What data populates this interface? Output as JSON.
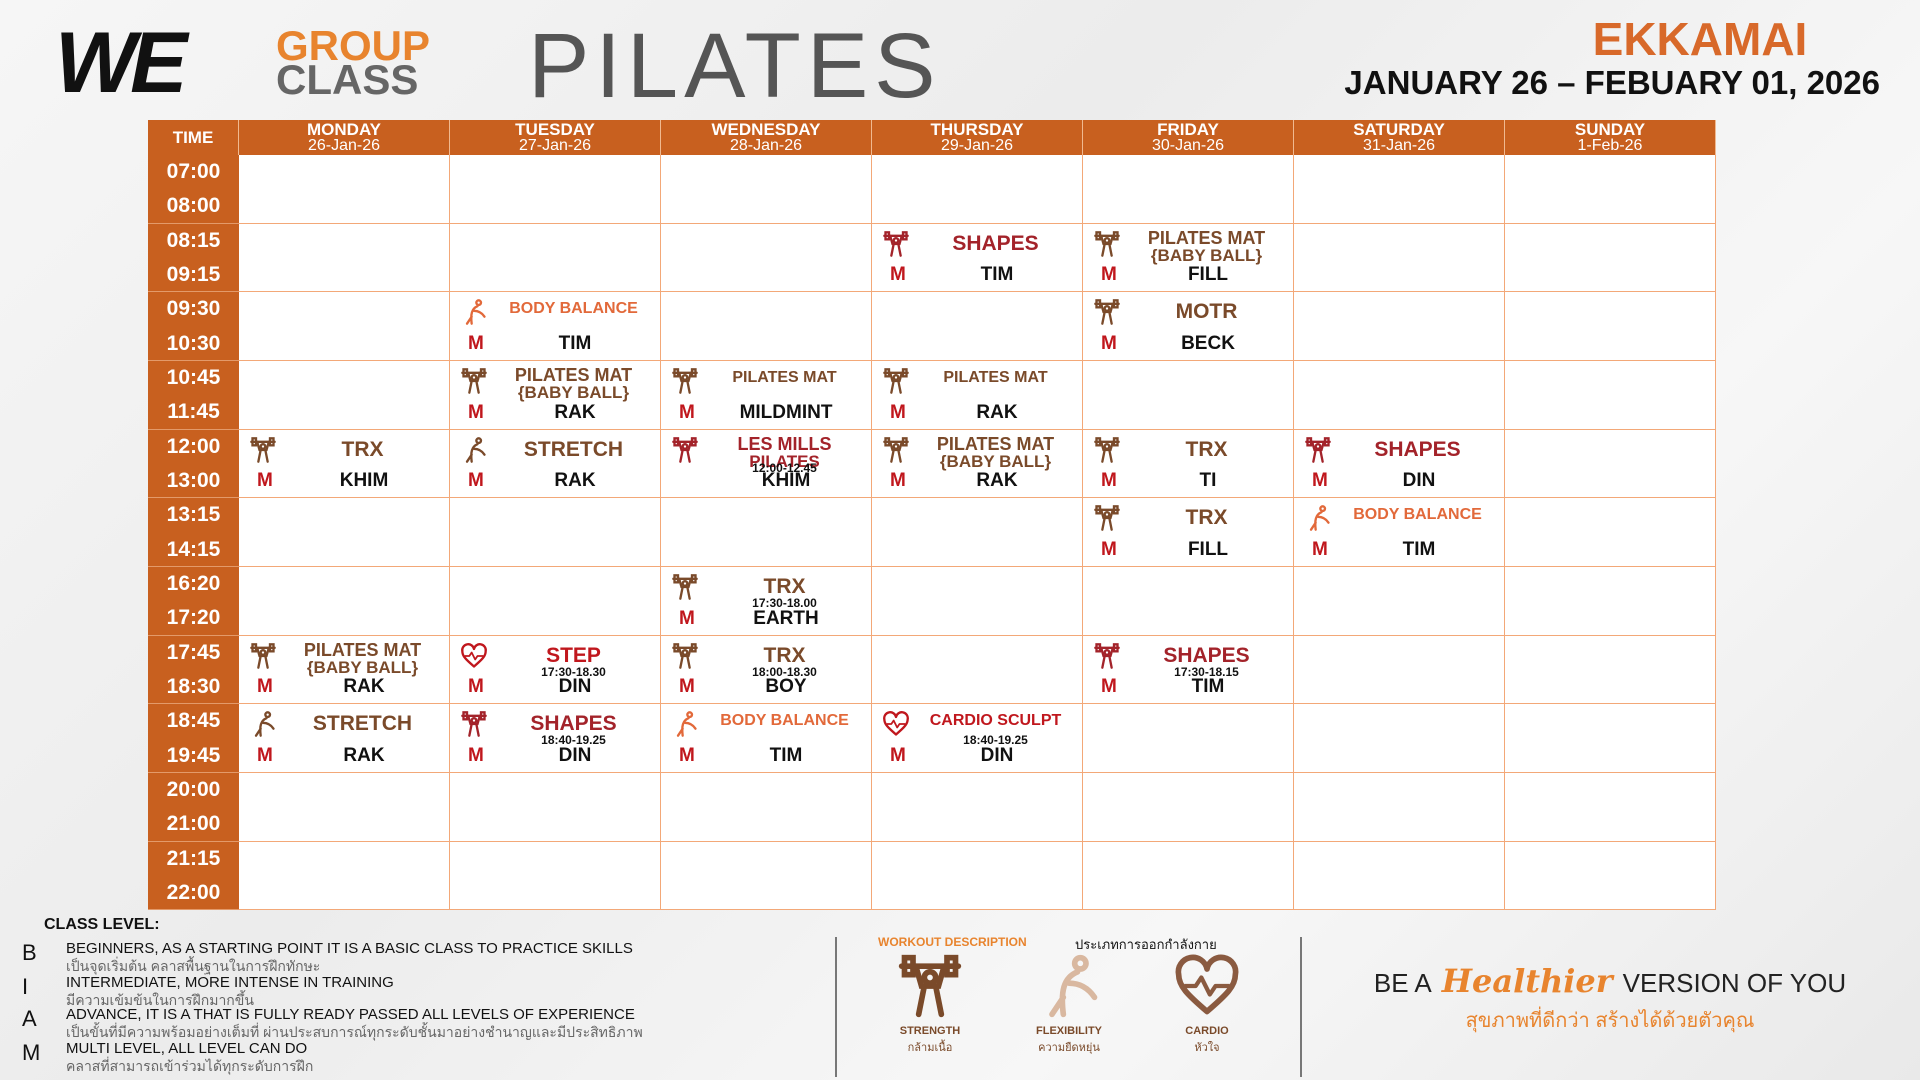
{
  "header": {
    "logo": "WE",
    "brand_line1": "GROUP",
    "brand_line2": "CLASS",
    "brand_main": "PILATES",
    "location": "EKKAMAI",
    "date_range": "JANUARY 26 – FEBUARY 01, 2026"
  },
  "schedule": {
    "time_header": "TIME",
    "days": [
      {
        "name": "MONDAY",
        "date": "26-Jan-26"
      },
      {
        "name": "TUESDAY",
        "date": "27-Jan-26"
      },
      {
        "name": "WEDNESDAY",
        "date": "28-Jan-26"
      },
      {
        "name": "THURSDAY",
        "date": "29-Jan-26"
      },
      {
        "name": "FRIDAY",
        "date": "30-Jan-26"
      },
      {
        "name": "SATURDAY",
        "date": "31-Jan-26"
      },
      {
        "name": "SUNDAY",
        "date": "1-Feb-26"
      }
    ],
    "slots": [
      [
        "07:00",
        "08:00"
      ],
      [
        "08:15",
        "09:15"
      ],
      [
        "09:30",
        "10:30"
      ],
      [
        "10:45",
        "11:45"
      ],
      [
        "12:00",
        "13:00"
      ],
      [
        "13:15",
        "14:15"
      ],
      [
        "16:20",
        "17:20"
      ],
      [
        "17:45",
        "18:30"
      ],
      [
        "18:45",
        "19:45"
      ],
      [
        "20:00",
        "21:00"
      ],
      [
        "21:15",
        "22:00"
      ]
    ],
    "classes": [
      {
        "day": 3,
        "slot": 1,
        "name": "SHAPES",
        "level": "M",
        "instructor": "TIM",
        "icon": 0,
        "color": "#a3232a"
      },
      {
        "day": 4,
        "slot": 1,
        "name": "PILATES MAT",
        "sub": "{BABY BALL}",
        "level": "M",
        "instructor": "FILL",
        "icon": 0,
        "color": "#7a4a2a"
      },
      {
        "day": 1,
        "slot": 2,
        "name": "BODY BALANCE",
        "level": "M",
        "instructor": "TIM",
        "icon": 1,
        "color": "#e2693a"
      },
      {
        "day": 4,
        "slot": 2,
        "name": "MOTR",
        "level": "M",
        "instructor": "BECK",
        "icon": 0,
        "color": "#7a4a2a"
      },
      {
        "day": 1,
        "slot": 3,
        "name": "PILATES MAT",
        "sub": "{BABY BALL}",
        "level": "M",
        "instructor": "RAK",
        "icon": 0,
        "color": "#7a4a2a"
      },
      {
        "day": 2,
        "slot": 3,
        "name": "PILATES MAT",
        "level": "M",
        "instructor": "MILDMINT",
        "icon": 0,
        "color": "#7a4a2a"
      },
      {
        "day": 3,
        "slot": 3,
        "name": "PILATES MAT",
        "level": "M",
        "instructor": "RAK",
        "icon": 0,
        "color": "#7a4a2a"
      },
      {
        "day": 0,
        "slot": 4,
        "name": "TRX",
        "level": "M",
        "instructor": "KHIM",
        "icon": 0,
        "color": "#7a4a2a"
      },
      {
        "day": 1,
        "slot": 4,
        "name": "STRETCH",
        "level": "M",
        "instructor": "RAK",
        "icon": 1,
        "color": "#7a4a2a"
      },
      {
        "day": 2,
        "slot": 4,
        "name": "LES MILLS",
        "sub": "PILATES",
        "time": "12:00-12.45",
        "instructor": "KHIM",
        "icon": 0,
        "color": "#a3232a"
      },
      {
        "day": 3,
        "slot": 4,
        "name": "PILATES MAT",
        "sub": "{BABY BALL}",
        "level": "M",
        "instructor": "RAK",
        "icon": 0,
        "color": "#7a4a2a"
      },
      {
        "day": 4,
        "slot": 4,
        "name": "TRX",
        "level": "M",
        "instructor": "TI",
        "icon": 0,
        "color": "#7a4a2a"
      },
      {
        "day": 5,
        "slot": 4,
        "name": "SHAPES",
        "level": "M",
        "instructor": "DIN",
        "icon": 0,
        "color": "#a3232a"
      },
      {
        "day": 4,
        "slot": 5,
        "name": "TRX",
        "level": "M",
        "instructor": "FILL",
        "icon": 0,
        "color": "#7a4a2a"
      },
      {
        "day": 5,
        "slot": 5,
        "name": "BODY BALANCE",
        "level": "M",
        "instructor": "TIM",
        "icon": 1,
        "color": "#e2693a"
      },
      {
        "day": 2,
        "slot": 6,
        "name": "TRX",
        "time": "17:30-18.00",
        "level": "M",
        "instructor": "EARTH",
        "icon": 0,
        "color": "#7a4a2a"
      },
      {
        "day": 0,
        "slot": 7,
        "name": "PILATES MAT",
        "sub": "{BABY BALL}",
        "level": "M",
        "instructor": "RAK",
        "icon": 0,
        "color": "#7a4a2a"
      },
      {
        "day": 1,
        "slot": 7,
        "name": "STEP",
        "time": "17:30-18.30",
        "level": "M",
        "instructor": "DIN",
        "icon": 2,
        "color": "#c0171d"
      },
      {
        "day": 2,
        "slot": 7,
        "name": "TRX",
        "time": "18:00-18.30",
        "level": "M",
        "instructor": "BOY",
        "icon": 0,
        "color": "#7a4a2a"
      },
      {
        "day": 4,
        "slot": 7,
        "name": "SHAPES",
        "time": "17:30-18.15",
        "level": "M",
        "instructor": "TIM",
        "icon": 0,
        "color": "#a3232a"
      },
      {
        "day": 0,
        "slot": 8,
        "name": "STRETCH",
        "level": "M",
        "instructor": "RAK",
        "icon": 1,
        "color": "#7a4a2a"
      },
      {
        "day": 1,
        "slot": 8,
        "name": "SHAPES",
        "time": "18:40-19.25",
        "level": "M",
        "instructor": "DIN",
        "icon": 0,
        "color": "#a3232a"
      },
      {
        "day": 2,
        "slot": 8,
        "name": "BODY BALANCE",
        "level": "M",
        "instructor": "TIM",
        "icon": 1,
        "color": "#e2693a"
      },
      {
        "day": 3,
        "slot": 8,
        "name": "CARDIO SCULPT",
        "time": "18:40-19.25",
        "level": "M",
        "instructor": "DIN",
        "icon": 2,
        "color": "#c0171d"
      }
    ]
  },
  "class_level": {
    "title": "CLASS LEVEL:",
    "levels": [
      {
        "code": "B",
        "en": "BEGINNERS, AS A STARTING POINT IT IS A BASIC CLASS TO PRACTICE SKILLS",
        "th": "เป็นจุดเริ่มต้น คลาสพื้นฐานในการฝึกทักษะ"
      },
      {
        "code": "I",
        "en": "INTERMEDIATE, MORE INTENSE IN TRAINING",
        "th": "มีความเข้มข้นในการฝึกมากขึ้น"
      },
      {
        "code": "A",
        "en": "ADVANCE, IT IS A THAT IS FULLY READY PASSED ALL LEVELS OF EXPERIENCE",
        "th": "เป็นขั้นที่มีความพร้อมอย่างเต็มที่ ผ่านประสบการณ์ทุกระดับชั้นมาอย่างชำนาญและมีประสิทธิภาพ"
      },
      {
        "code": "M",
        "en": "MULTI LEVEL, ALL LEVEL CAN DO",
        "th": "คลาสที่สามารถเข้าร่วมได้ทุกระดับการฝึก"
      }
    ]
  },
  "workout": {
    "title": "WORKOUT DESCRIPTION",
    "title_th": "ประเภทการออกกำลังกาย",
    "types": [
      {
        "en": "STRENGTH",
        "th": "กล้ามเนื้อ"
      },
      {
        "en": "FLEXIBILITY",
        "th": "ความยืดหยุ่น"
      },
      {
        "en": "CARDIO",
        "th": "หัวใจ"
      }
    ]
  },
  "tagline": {
    "pre": "BE A",
    "script": "Healthier",
    "post": "VERSION OF YOU",
    "th": "สุขภาพที่ดีกว่า สร้างได้ด้วยตัวคุณ"
  }
}
